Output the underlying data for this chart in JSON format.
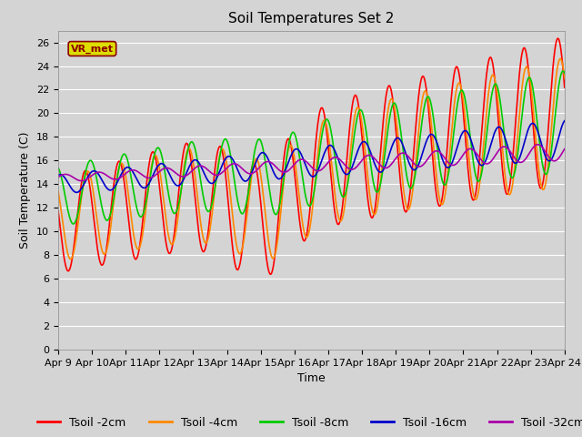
{
  "title": "Soil Temperatures Set 2",
  "xlabel": "Time",
  "ylabel": "Soil Temperature (C)",
  "ylim": [
    0,
    27
  ],
  "yticks": [
    0,
    2,
    4,
    6,
    8,
    10,
    12,
    14,
    16,
    18,
    20,
    22,
    24,
    26
  ],
  "x_tick_labels": [
    "Apr 9",
    "Apr 10",
    "Apr 11",
    "Apr 12",
    "Apr 13",
    "Apr 14",
    "Apr 15",
    "Apr 16",
    "Apr 17",
    "Apr 18",
    "Apr 19",
    "Apr 20",
    "Apr 21",
    "Apr 22",
    "Apr 23",
    "Apr 24"
  ],
  "colors": {
    "Tsoil -2cm": "#ff0000",
    "Tsoil -4cm": "#ff8800",
    "Tsoil -8cm": "#00cc00",
    "Tsoil -16cm": "#0000cc",
    "Tsoil -32cm": "#aa00aa"
  },
  "background_color": "#d4d4d4",
  "plot_bg_color": "#d4d4d4",
  "grid_color": "#ffffff",
  "vr_met_label": "VR_met",
  "vr_met_bg": "#dddd00",
  "vr_met_border": "#8b0000",
  "legend_labels": [
    "Tsoil -2cm",
    "Tsoil -4cm",
    "Tsoil -8cm",
    "Tsoil -16cm",
    "Tsoil -32cm"
  ],
  "title_fontsize": 11,
  "axis_label_fontsize": 9,
  "tick_fontsize": 8,
  "legend_fontsize": 9,
  "line_width": 1.2
}
